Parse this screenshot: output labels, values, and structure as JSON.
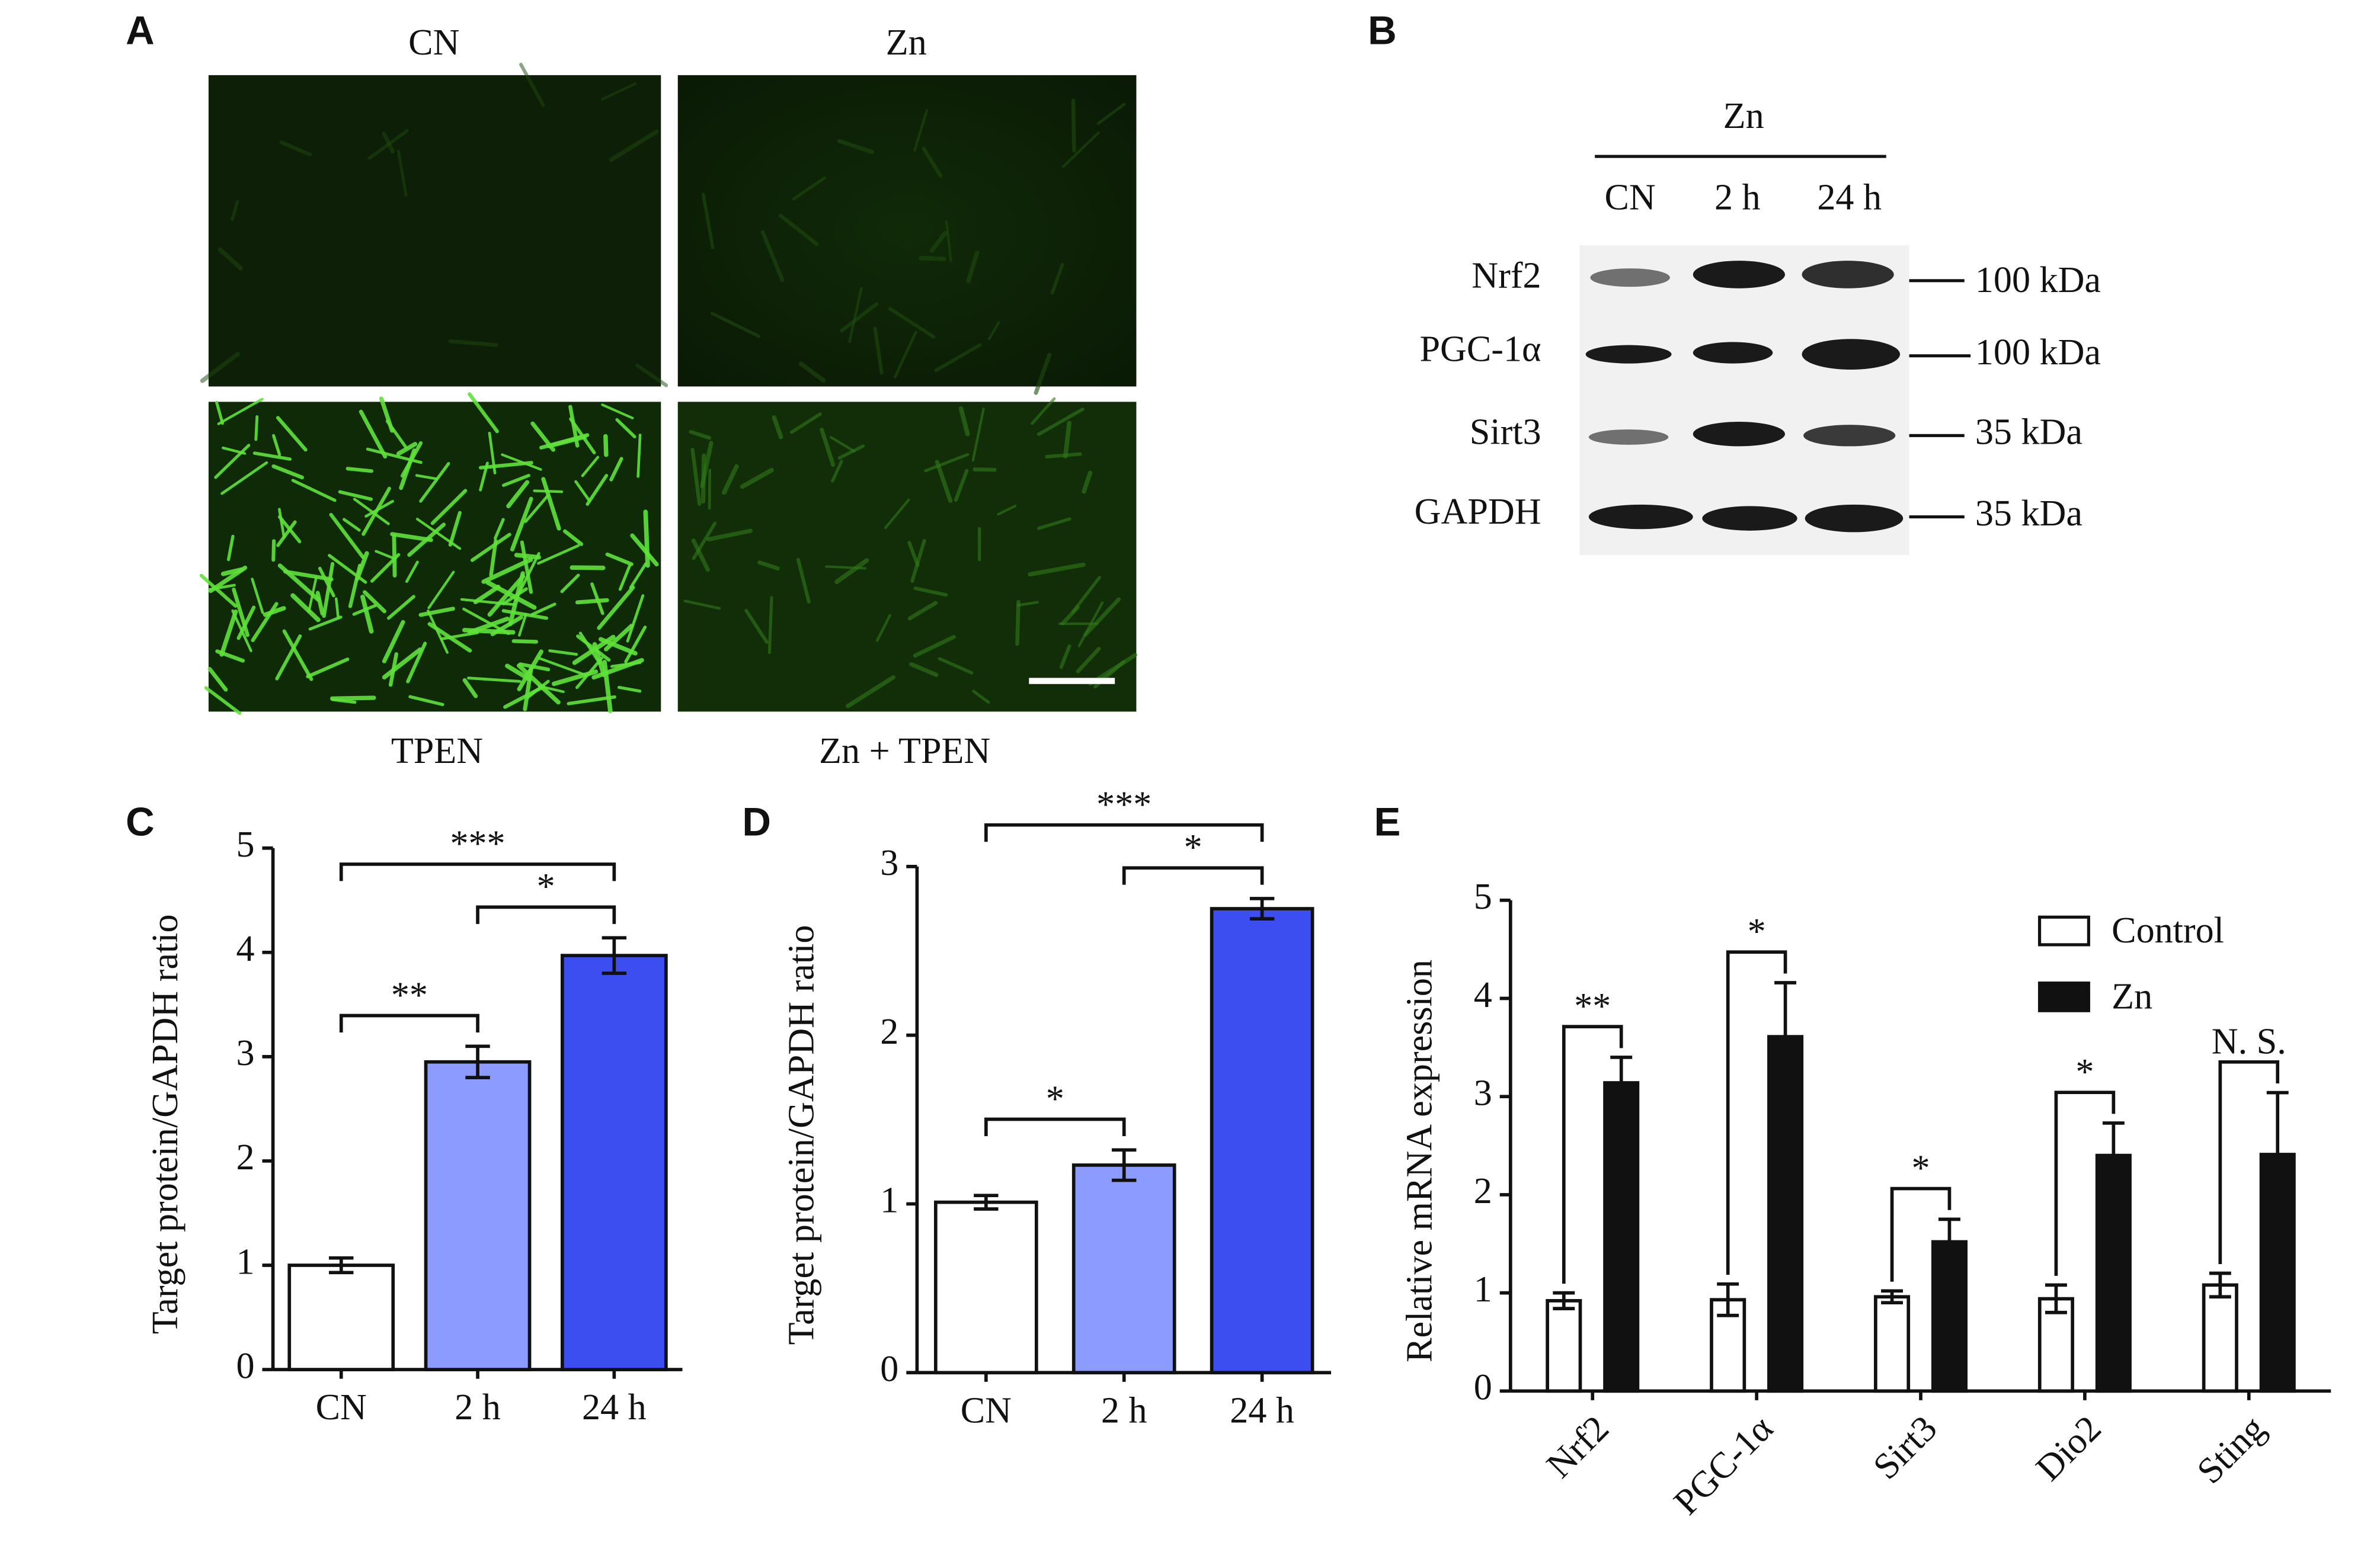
{
  "panel_a": {
    "label": "A",
    "images": [
      {
        "caption": "CN"
      },
      {
        "caption": "Zn"
      },
      {
        "caption": "TPEN"
      },
      {
        "caption": "Zn + TPEN"
      }
    ]
  },
  "panel_b": {
    "label": "B",
    "group": "Zn",
    "lanes": [
      "CN",
      "2 h",
      "24 h"
    ],
    "rows": [
      {
        "protein": "Nrf2",
        "size": "100 kDa"
      },
      {
        "protein": "PGC-1α",
        "size": "100 kDa"
      },
      {
        "protein": "Sirt3",
        "size": "35 kDa"
      },
      {
        "protein": "GAPDH",
        "size": "35 kDa"
      }
    ]
  },
  "chart_data": [
    {
      "type": "bar",
      "panel": "C",
      "ylabel": "Target protein/GAPDH ratio",
      "categories": [
        "CN",
        "2 h",
        "24 h"
      ],
      "values": [
        1.0,
        2.95,
        3.97
      ],
      "errors": [
        0.07,
        0.15,
        0.17
      ],
      "colors": [
        "#ffffff",
        "#8b9bff",
        "#3d4ef0"
      ],
      "ylim": [
        0,
        5
      ],
      "yticks": [
        0,
        1,
        2,
        3,
        4,
        5
      ],
      "annotations": [
        {
          "text": "**",
          "between": [
            "CN",
            "2 h"
          ]
        },
        {
          "text": "*",
          "between": [
            "2 h",
            "24 h"
          ]
        },
        {
          "text": "***",
          "between": [
            "CN",
            "24 h"
          ]
        }
      ]
    },
    {
      "type": "bar",
      "panel": "D",
      "ylabel": "Target protein/GAPDH ratio",
      "categories": [
        "CN",
        "2 h",
        "24 h"
      ],
      "values": [
        1.01,
        1.23,
        2.75
      ],
      "errors": [
        0.04,
        0.09,
        0.06
      ],
      "colors": [
        "#ffffff",
        "#8b9bff",
        "#3d4ef0"
      ],
      "ylim": [
        0,
        3
      ],
      "yticks": [
        0,
        1,
        2,
        3
      ],
      "annotations": [
        {
          "text": "*",
          "between": [
            "CN",
            "2 h"
          ]
        },
        {
          "text": "*",
          "between": [
            "2 h",
            "24 h"
          ]
        },
        {
          "text": "***",
          "between": [
            "CN",
            "24 h"
          ]
        }
      ]
    },
    {
      "type": "grouped_bar",
      "panel": "E",
      "ylabel": "Relative mRNA  expression",
      "categories": [
        "Nrf2",
        "PGC-1α",
        "Sirt3",
        "Dio2",
        "Sting"
      ],
      "series": [
        {
          "name": "Control",
          "color": "#ffffff",
          "values": [
            0.92,
            0.93,
            0.96,
            0.94,
            1.08
          ],
          "errors": [
            0.08,
            0.16,
            0.06,
            0.14,
            0.12
          ]
        },
        {
          "name": "Zn",
          "color": "#111111",
          "values": [
            3.14,
            3.61,
            1.52,
            2.4,
            2.41
          ],
          "errors": [
            0.26,
            0.55,
            0.23,
            0.33,
            0.63
          ]
        }
      ],
      "ylim": [
        0,
        5
      ],
      "yticks": [
        0,
        1,
        2,
        3,
        4,
        5
      ],
      "legend": "top-right",
      "annotations": [
        {
          "text": "**",
          "category": "Nrf2"
        },
        {
          "text": "*",
          "category": "PGC-1α"
        },
        {
          "text": "*",
          "category": "Sirt3"
        },
        {
          "text": "*",
          "category": "Dio2"
        },
        {
          "text": "N. S.",
          "category": "Sting"
        }
      ]
    }
  ]
}
